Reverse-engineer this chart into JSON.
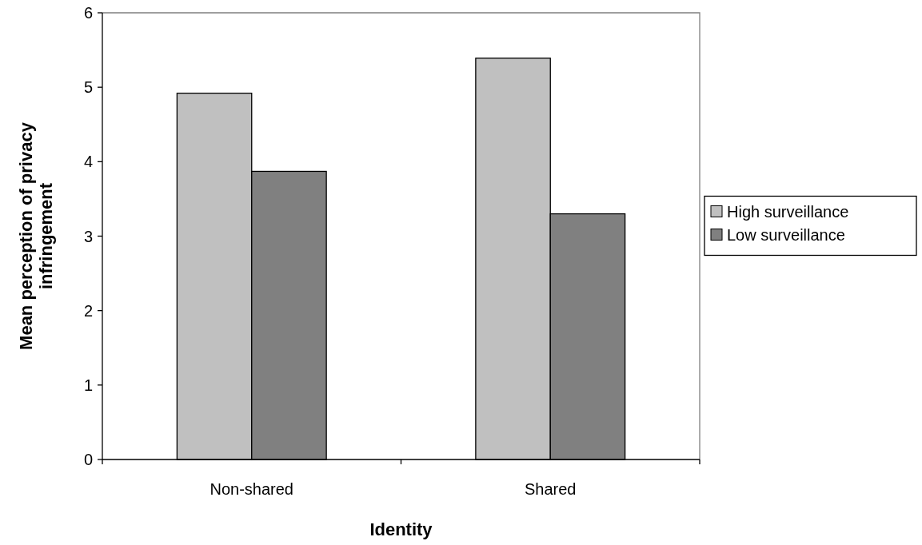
{
  "chart_data": {
    "type": "bar",
    "xlabel": "Identity",
    "ylabel": "Mean perception of privacy infringement",
    "categories": [
      "Non-shared",
      "Shared"
    ],
    "series": [
      {
        "name": "High surveillance",
        "color": "#c0c0c0",
        "values": [
          4.92,
          5.39
        ]
      },
      {
        "name": "Low surveillance",
        "color": "#808080",
        "values": [
          3.87,
          3.3
        ]
      }
    ],
    "ylim": [
      0,
      6
    ],
    "yticks": [
      0,
      1,
      2,
      3,
      4,
      5,
      6
    ],
    "grid": false,
    "legend": "right"
  }
}
